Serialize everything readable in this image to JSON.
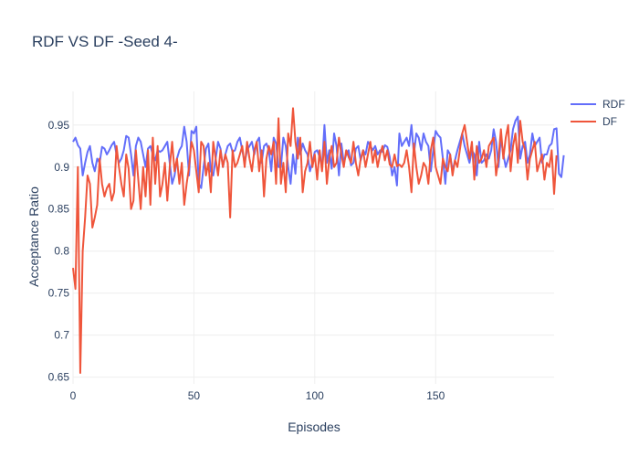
{
  "chart_data": {
    "type": "line",
    "title": "RDF VS DF -Seed 4-",
    "xlabel": "Episodes",
    "ylabel": "Acceptance Ratio",
    "xlim": [
      0,
      199
    ],
    "ylim": [
      0.642,
      0.99
    ],
    "xticks": [
      0,
      50,
      100,
      150
    ],
    "xtick_labels": [
      "0",
      "50",
      "100",
      "150"
    ],
    "yticks": [
      0.65,
      0.7,
      0.75,
      0.8,
      0.85,
      0.9,
      0.95
    ],
    "ytick_labels": [
      "0.65",
      "0.7",
      "0.75",
      "0.8",
      "0.85",
      "0.9",
      "0.95"
    ],
    "grid": true,
    "legend_position": "top-right",
    "series": [
      {
        "name": "RDF",
        "color": "#636efa",
        "values": [
          0.93,
          0.935,
          0.926,
          0.922,
          0.89,
          0.905,
          0.918,
          0.925,
          0.905,
          0.895,
          0.91,
          0.905,
          0.924,
          0.922,
          0.915,
          0.92,
          0.926,
          0.93,
          0.915,
          0.905,
          0.91,
          0.92,
          0.937,
          0.935,
          0.915,
          0.89,
          0.925,
          0.935,
          0.93,
          0.915,
          0.9,
          0.922,
          0.925,
          0.915,
          0.908,
          0.92,
          0.918,
          0.92,
          0.925,
          0.93,
          0.905,
          0.88,
          0.89,
          0.91,
          0.92,
          0.925,
          0.948,
          0.93,
          0.89,
          0.943,
          0.94,
          0.948,
          0.88,
          0.875,
          0.9,
          0.922,
          0.928,
          0.895,
          0.89,
          0.91,
          0.93,
          0.922,
          0.9,
          0.915,
          0.925,
          0.928,
          0.918,
          0.92,
          0.93,
          0.935,
          0.92,
          0.905,
          0.92,
          0.925,
          0.93,
          0.915,
          0.93,
          0.935,
          0.905,
          0.925,
          0.928,
          0.92,
          0.895,
          0.935,
          0.928,
          0.9,
          0.9,
          0.935,
          0.925,
          0.9,
          0.88,
          0.915,
          0.892,
          0.935,
          0.915,
          0.928,
          0.92,
          0.915,
          0.895,
          0.905,
          0.918,
          0.92,
          0.912,
          0.9,
          0.95,
          0.905,
          0.92,
          0.898,
          0.94,
          0.925,
          0.89,
          0.928,
          0.905,
          0.915,
          0.92,
          0.902,
          0.905,
          0.922,
          0.925,
          0.908,
          0.92,
          0.915,
          0.93,
          0.925,
          0.92,
          0.925,
          0.915,
          0.92,
          0.918,
          0.926,
          0.924,
          0.912,
          0.89,
          0.9,
          0.878,
          0.94,
          0.925,
          0.93,
          0.935,
          0.925,
          0.95,
          0.915,
          0.94,
          0.935,
          0.92,
          0.94,
          0.93,
          0.925,
          0.895,
          0.92,
          0.943,
          0.938,
          0.935,
          0.91,
          0.88,
          0.92,
          0.915,
          0.895,
          0.908,
          0.92,
          0.93,
          0.94,
          0.925,
          0.915,
          0.905,
          0.92,
          0.915,
          0.89,
          0.93,
          0.905,
          0.908,
          0.915,
          0.91,
          0.92,
          0.945,
          0.93,
          0.9,
          0.935,
          0.915,
          0.9,
          0.91,
          0.92,
          0.945,
          0.955,
          0.96,
          0.91,
          0.925,
          0.93,
          0.905,
          0.915,
          0.94,
          0.925,
          0.93,
          0.935,
          0.905,
          0.915,
          0.915,
          0.925,
          0.928,
          0.945,
          0.946,
          0.892,
          0.888,
          0.914
        ]
      },
      {
        "name": "DF",
        "color": "#ef553b",
        "values": [
          0.78,
          0.755,
          0.9,
          0.655,
          0.8,
          0.84,
          0.89,
          0.88,
          0.828,
          0.84,
          0.855,
          0.91,
          0.88,
          0.865,
          0.875,
          0.88,
          0.86,
          0.87,
          0.925,
          0.9,
          0.88,
          0.865,
          0.915,
          0.898,
          0.85,
          0.86,
          0.92,
          0.885,
          0.85,
          0.9,
          0.865,
          0.92,
          0.855,
          0.935,
          0.88,
          0.925,
          0.865,
          0.88,
          0.905,
          0.86,
          0.9,
          0.93,
          0.895,
          0.91,
          0.88,
          0.905,
          0.855,
          0.88,
          0.9,
          0.93,
          0.92,
          0.895,
          0.87,
          0.93,
          0.925,
          0.89,
          0.905,
          0.87,
          0.93,
          0.91,
          0.89,
          0.92,
          0.9,
          0.915,
          0.905,
          0.84,
          0.92,
          0.9,
          0.905,
          0.915,
          0.925,
          0.9,
          0.93,
          0.91,
          0.895,
          0.92,
          0.93,
          0.895,
          0.92,
          0.865,
          0.91,
          0.925,
          0.915,
          0.93,
          0.88,
          0.958,
          0.88,
          0.905,
          0.87,
          0.94,
          0.925,
          0.97,
          0.93,
          0.91,
          0.935,
          0.87,
          0.895,
          0.905,
          0.93,
          0.9,
          0.915,
          0.885,
          0.92,
          0.895,
          0.93,
          0.88,
          0.91,
          0.925,
          0.9,
          0.905,
          0.935,
          0.915,
          0.9,
          0.92,
          0.912,
          0.905,
          0.93,
          0.905,
          0.89,
          0.91,
          0.92,
          0.9,
          0.915,
          0.93,
          0.905,
          0.92,
          0.9,
          0.915,
          0.925,
          0.908,
          0.92,
          0.903,
          0.9,
          0.915,
          0.901,
          0.903,
          0.9,
          0.905,
          0.92,
          0.9,
          0.87,
          0.928,
          0.9,
          0.88,
          0.89,
          0.905,
          0.9,
          0.88,
          0.92,
          0.935,
          0.9,
          0.89,
          0.88,
          0.91,
          0.9,
          0.895,
          0.915,
          0.89,
          0.908,
          0.9,
          0.92,
          0.94,
          0.95,
          0.93,
          0.91,
          0.93,
          0.885,
          0.925,
          0.905,
          0.91,
          0.92,
          0.9,
          0.925,
          0.93,
          0.935,
          0.89,
          0.91,
          0.945,
          0.91,
          0.935,
          0.95,
          0.895,
          0.925,
          0.94,
          0.905,
          0.955,
          0.93,
          0.92,
          0.885,
          0.91,
          0.92,
          0.93,
          0.895,
          0.905,
          0.915,
          0.885,
          0.905,
          0.9,
          0.92,
          0.868,
          0.914
        ]
      }
    ]
  }
}
